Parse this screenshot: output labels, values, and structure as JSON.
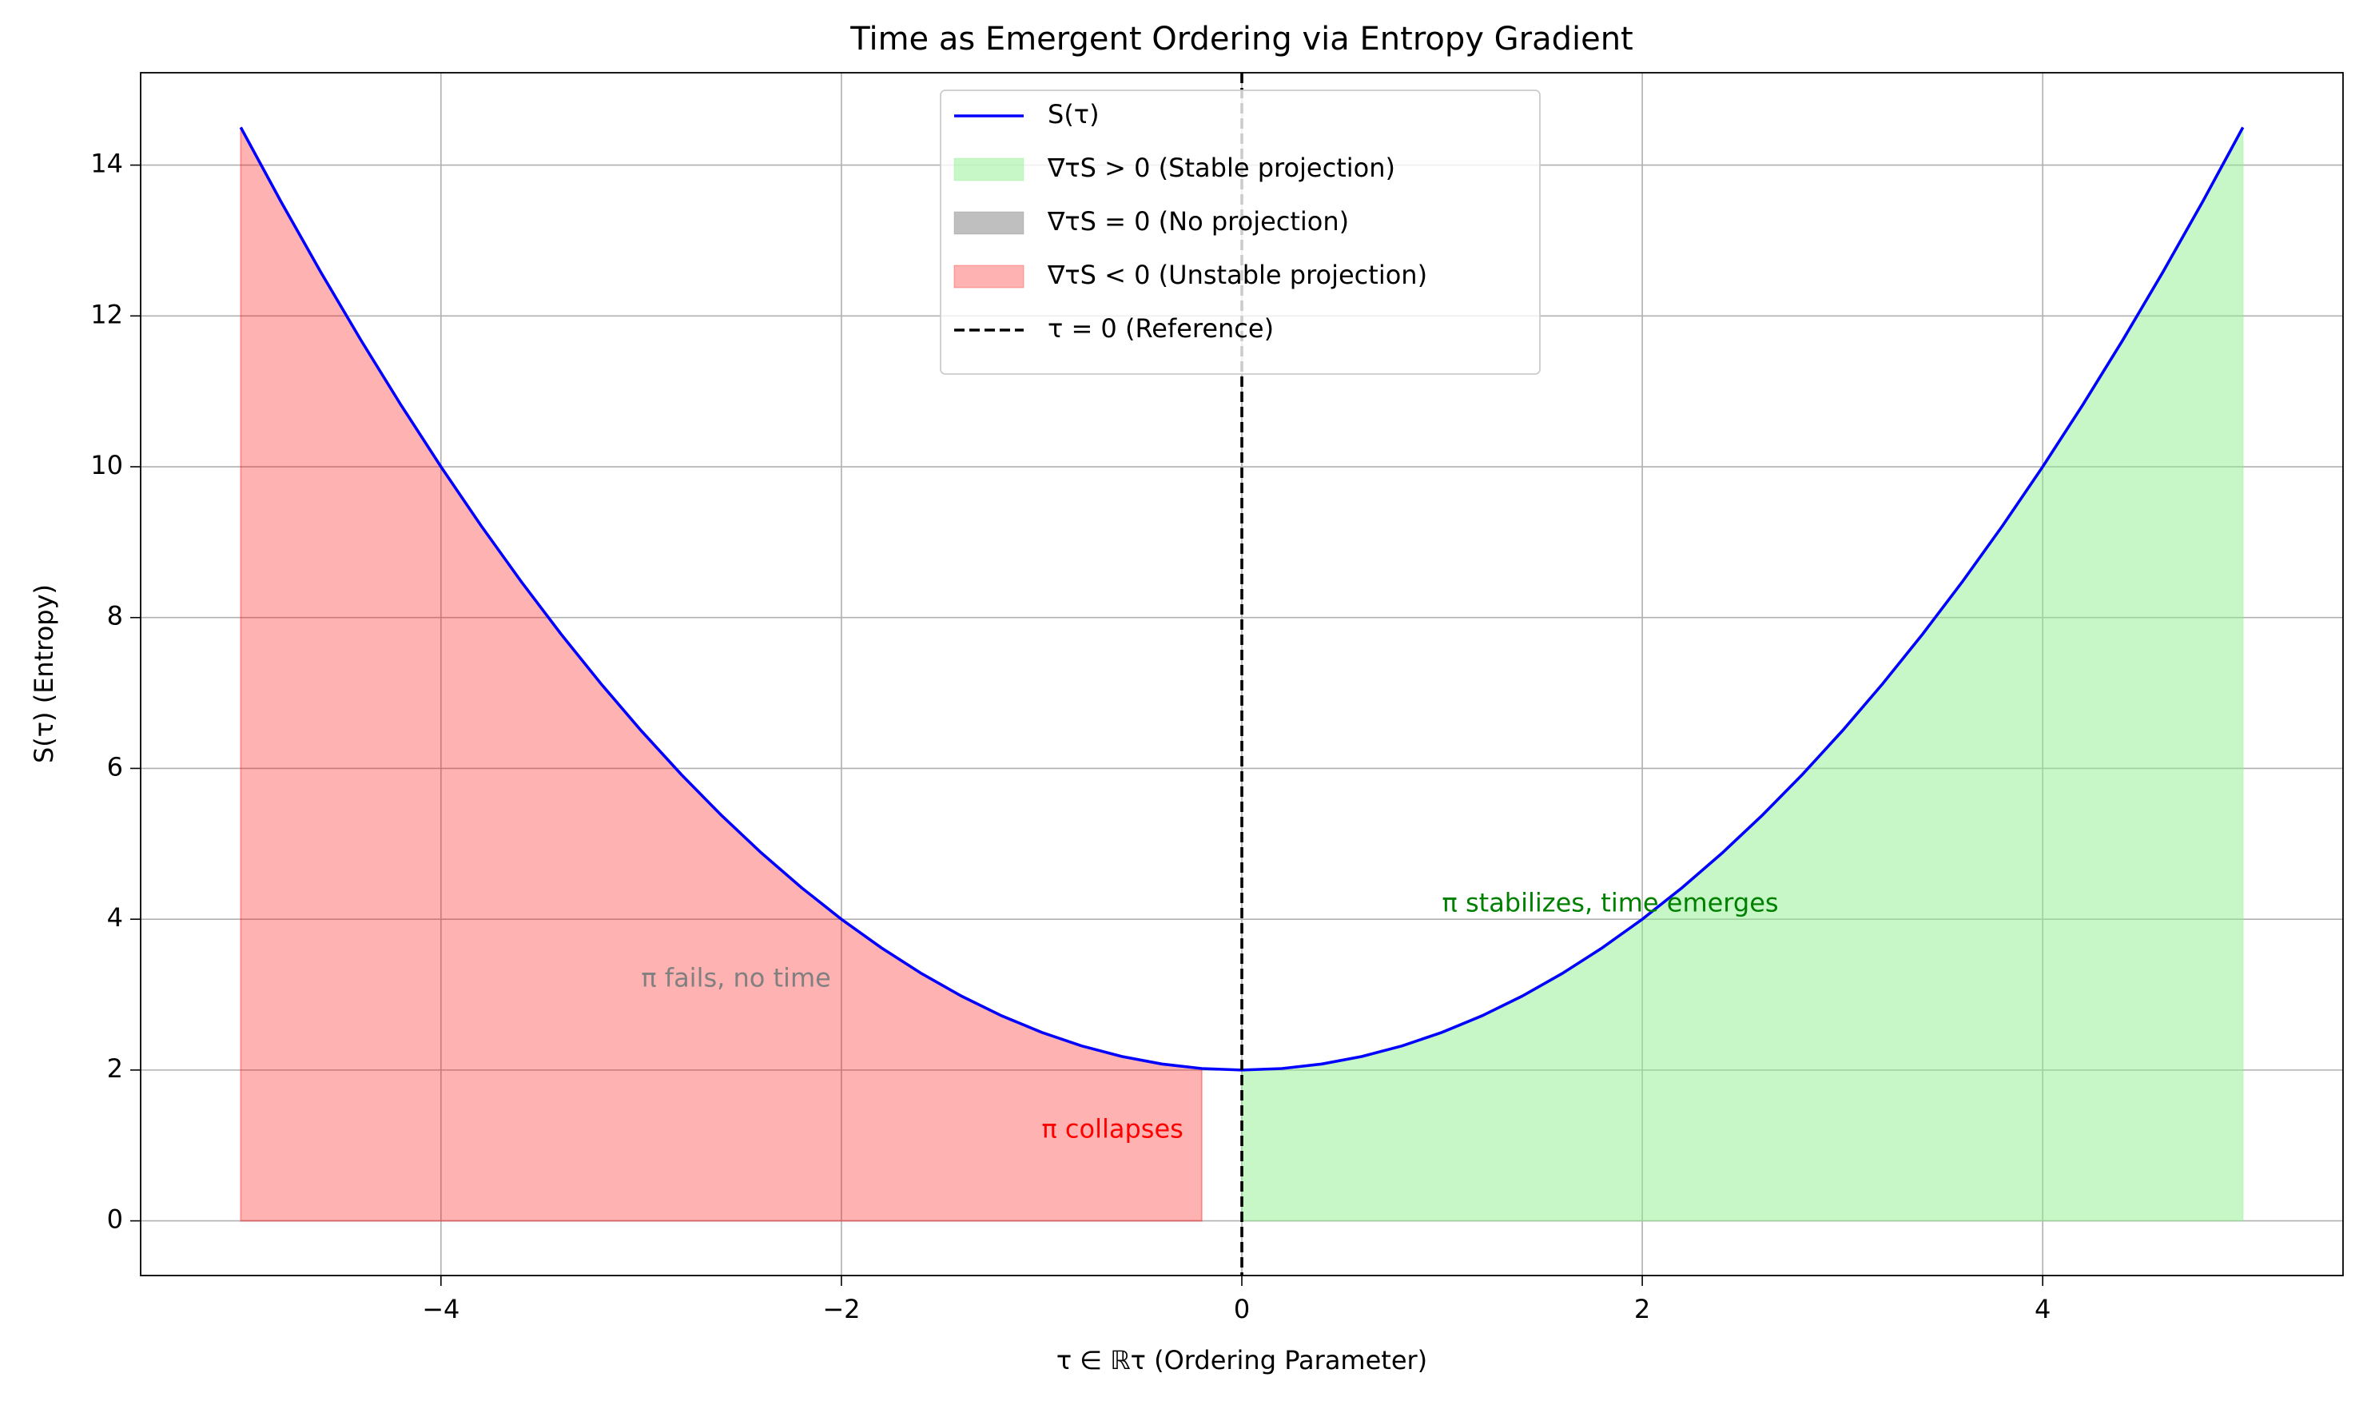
{
  "chart_data": {
    "type": "line",
    "title": "Time as Emergent Ordering via Entropy Gradient",
    "xlabel": "τ ∈ ℝτ (Ordering Parameter)",
    "ylabel": "S(τ) (Entropy)",
    "x": [
      -5,
      -4.8,
      -4.6,
      -4.4,
      -4.2,
      -4,
      -3.8,
      -3.6,
      -3.4,
      -3.2,
      -3,
      -2.8,
      -2.6,
      -2.4,
      -2.2,
      -2,
      -1.8,
      -1.6,
      -1.4,
      -1.2,
      -1,
      -0.8,
      -0.6,
      -0.4,
      -0.2,
      0,
      0.2,
      0.4,
      0.6,
      0.8,
      1,
      1.2,
      1.4,
      1.6,
      1.8,
      2,
      2.2,
      2.4,
      2.6,
      2.8,
      3,
      3.2,
      3.4,
      3.6,
      3.8,
      4,
      4.2,
      4.4,
      4.6,
      4.8,
      5
    ],
    "series": [
      {
        "name": "S(τ)",
        "color": "#0000ff",
        "values": [
          14.5,
          13.52,
          12.58,
          11.68,
          10.82,
          10,
          9.22,
          8.48,
          7.78,
          7.12,
          6.5,
          5.92,
          5.38,
          4.88,
          4.42,
          4,
          3.62,
          3.28,
          2.98,
          2.72,
          2.5,
          2.32,
          2.18,
          2.08,
          2.02,
          2,
          2.02,
          2.08,
          2.18,
          2.32,
          2.5,
          2.72,
          2.98,
          3.28,
          3.62,
          4,
          4.42,
          4.88,
          5.38,
          5.92,
          6.5,
          7.12,
          7.78,
          8.48,
          9.22,
          10,
          10.82,
          11.68,
          12.58,
          13.52,
          14.5
        ]
      }
    ],
    "fills": [
      {
        "name": "∇τS > 0 (Stable projection)",
        "color": "#90ee90",
        "range": [
          0,
          5
        ]
      },
      {
        "name": "∇τS = 0 (No projection)",
        "color": "#808080"
      },
      {
        "name": "∇τS < 0 (Unstable projection)",
        "color": "#ff0000",
        "range": [
          -5,
          -0.2
        ]
      }
    ],
    "vline": {
      "name": "τ = 0 (Reference)",
      "x": 0,
      "color": "#000000"
    },
    "annotations": [
      {
        "text": "π stabilizes, time emerges",
        "x": 1,
        "y": 4.2,
        "color": "#008000"
      },
      {
        "text": "π fails, no time",
        "x": -3,
        "y": 3.2,
        "color": "#808080"
      },
      {
        "text": "π collapses",
        "x": -1,
        "y": 1.2,
        "color": "#ff0000"
      }
    ],
    "xlim": [
      -5.5,
      5.5
    ],
    "ylim": [
      -0.725,
      15.225
    ],
    "xticks": [
      {
        "value": -4,
        "label": "−4"
      },
      {
        "value": -2,
        "label": "−2"
      },
      0,
      2,
      4
    ],
    "yticks": [
      0,
      2,
      4,
      6,
      8,
      10,
      12,
      14
    ],
    "grid": true,
    "legend": "upper center"
  }
}
